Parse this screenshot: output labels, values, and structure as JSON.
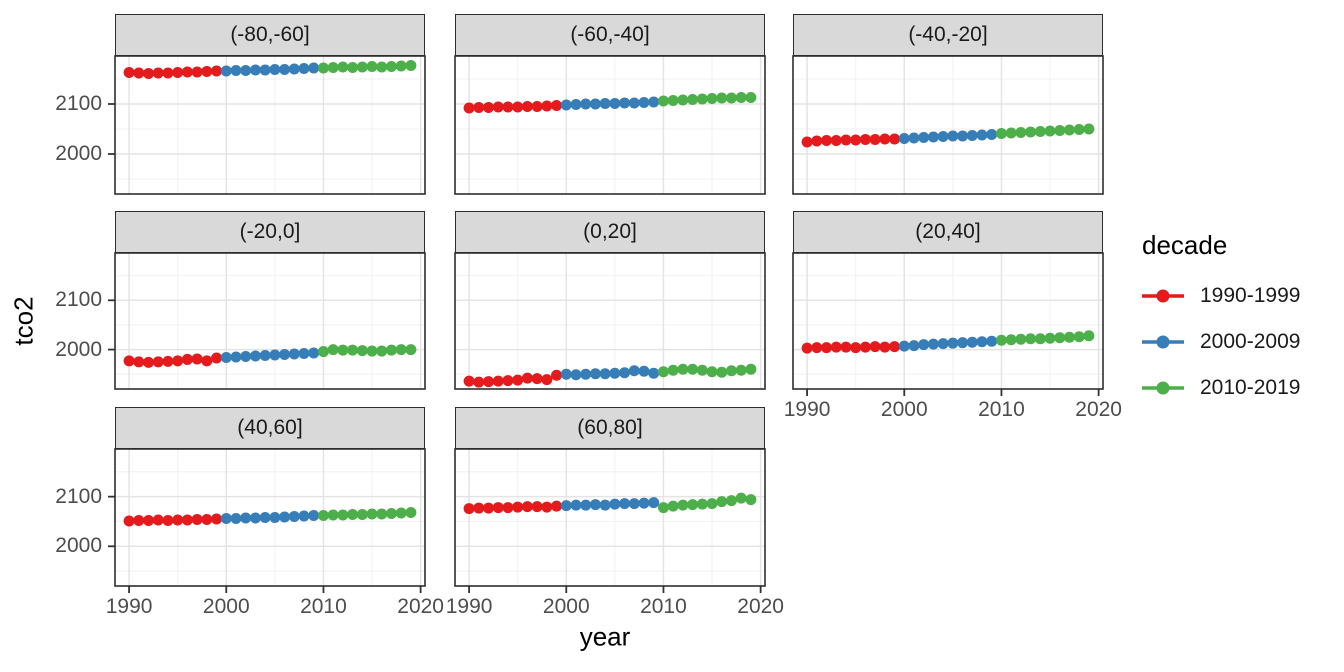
{
  "figure": {
    "y_axis_title": "tco2",
    "x_axis_title": "year"
  },
  "legend": {
    "title": "decade",
    "entries": [
      {
        "label": "1990-1999",
        "color": "#E41A1C"
      },
      {
        "label": "2000-2009",
        "color": "#377EB8"
      },
      {
        "label": "2010-2019",
        "color": "#4DAF4A"
      }
    ]
  },
  "chart_data": {
    "type": "scatter",
    "title": "",
    "xlabel": "year",
    "ylabel": "tco2",
    "facet_variable": "latitude band",
    "legend_title": "decade",
    "legend_position": "right",
    "grid": true,
    "xlim": [
      1988.55,
      2020.45
    ],
    "ylim": [
      1920,
      2196
    ],
    "x_ticks": [
      1990,
      2000,
      2010,
      2020
    ],
    "y_ticks": [
      2100,
      2000
    ],
    "x_minor_ticks": [
      1995,
      2005,
      2015
    ],
    "y_minor_ticks": [
      2150,
      2050,
      1950
    ],
    "years": [
      1990,
      1991,
      1992,
      1993,
      1994,
      1995,
      1996,
      1997,
      1998,
      1999,
      2000,
      2001,
      2002,
      2003,
      2004,
      2005,
      2006,
      2007,
      2008,
      2009,
      2010,
      2011,
      2012,
      2013,
      2014,
      2015,
      2016,
      2017,
      2018,
      2019
    ],
    "series": [
      {
        "name": "1990-1999",
        "color": "#E41A1C",
        "year_start": 1990,
        "year_end": 1999
      },
      {
        "name": "2000-2009",
        "color": "#377EB8",
        "year_start": 2000,
        "year_end": 2009
      },
      {
        "name": "2010-2019",
        "color": "#4DAF4A",
        "year_start": 2010,
        "year_end": 2019
      }
    ],
    "facets": [
      {
        "label": "(-80,-60]",
        "values": [
          2163,
          2162,
          2161,
          2162,
          2162,
          2163,
          2164,
          2164,
          2165,
          2166,
          2166,
          2167,
          2167,
          2168,
          2168,
          2169,
          2169,
          2170,
          2171,
          2172,
          2172,
          2173,
          2174,
          2173,
          2174,
          2175,
          2174,
          2175,
          2176,
          2177
        ]
      },
      {
        "label": "(-60,-40]",
        "values": [
          2092,
          2093,
          2093,
          2094,
          2094,
          2094,
          2095,
          2095,
          2096,
          2097,
          2098,
          2099,
          2100,
          2100,
          2101,
          2101,
          2102,
          2102,
          2103,
          2104,
          2106,
          2107,
          2108,
          2109,
          2110,
          2111,
          2112,
          2112,
          2113,
          2113
        ]
      },
      {
        "label": "(-40,-20]",
        "values": [
          2024,
          2026,
          2027,
          2027,
          2028,
          2028,
          2029,
          2029,
          2030,
          2030,
          2031,
          2032,
          2033,
          2034,
          2035,
          2036,
          2036,
          2037,
          2038,
          2039,
          2041,
          2042,
          2043,
          2044,
          2045,
          2046,
          2047,
          2048,
          2049,
          2050
        ]
      },
      {
        "label": "(-20,0]",
        "values": [
          1977,
          1975,
          1974,
          1975,
          1976,
          1977,
          1980,
          1981,
          1977,
          1983,
          1984,
          1985,
          1986,
          1987,
          1988,
          1989,
          1990,
          1991,
          1992,
          1993,
          1996,
          2000,
          1999,
          1999,
          1998,
          1997,
          1997,
          1999,
          2000,
          2000
        ]
      },
      {
        "label": "(0,20]",
        "values": [
          1936,
          1934,
          1935,
          1936,
          1937,
          1938,
          1942,
          1941,
          1939,
          1948,
          1950,
          1949,
          1950,
          1951,
          1951,
          1952,
          1953,
          1957,
          1956,
          1952,
          1955,
          1958,
          1960,
          1960,
          1958,
          1955,
          1954,
          1957,
          1958,
          1960
        ]
      },
      {
        "label": "(20,40]",
        "values": [
          2003,
          2004,
          2004,
          2005,
          2005,
          2004,
          2005,
          2006,
          2005,
          2006,
          2007,
          2008,
          2010,
          2011,
          2012,
          2013,
          2014,
          2015,
          2016,
          2017,
          2019,
          2020,
          2021,
          2022,
          2022,
          2023,
          2024,
          2025,
          2026,
          2028
        ]
      },
      {
        "label": "(40,60]",
        "values": [
          2051,
          2052,
          2052,
          2053,
          2052,
          2053,
          2053,
          2054,
          2054,
          2055,
          2056,
          2056,
          2057,
          2057,
          2058,
          2058,
          2059,
          2060,
          2061,
          2062,
          2062,
          2063,
          2063,
          2064,
          2064,
          2065,
          2065,
          2066,
          2067,
          2068
        ]
      },
      {
        "label": "(60,80]",
        "values": [
          2076,
          2077,
          2077,
          2078,
          2078,
          2079,
          2080,
          2080,
          2079,
          2081,
          2082,
          2083,
          2083,
          2084,
          2083,
          2085,
          2086,
          2086,
          2087,
          2088,
          2078,
          2081,
          2083,
          2084,
          2085,
          2086,
          2090,
          2092,
          2097,
          2094
        ]
      }
    ]
  }
}
